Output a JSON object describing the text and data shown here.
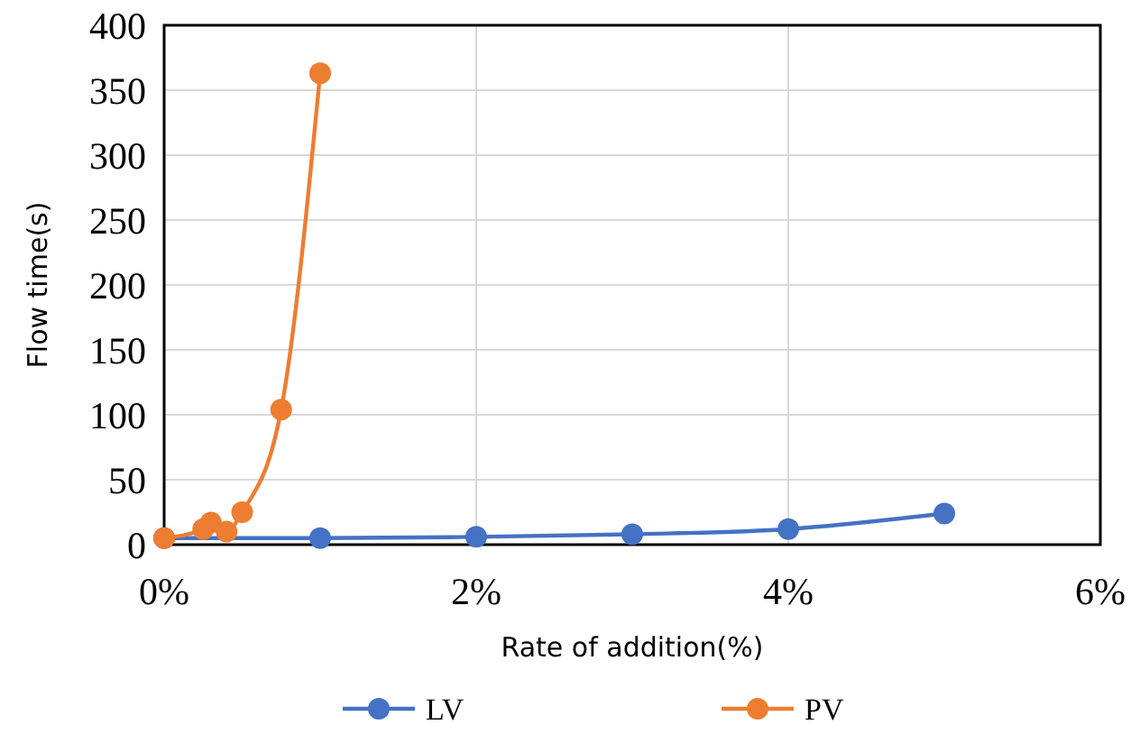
{
  "chart_data": {
    "type": "line",
    "xlabel": "Rate of addition(%)",
    "ylabel": "Flow time(s)",
    "xlim": [
      0,
      6
    ],
    "xticks": [
      {
        "value": 0,
        "label": "0%"
      },
      {
        "value": 2,
        "label": "2%"
      },
      {
        "value": 4,
        "label": "4%"
      },
      {
        "value": 6,
        "label": "6%"
      }
    ],
    "ylim": [
      0,
      400
    ],
    "yticks": [
      0,
      50,
      100,
      150,
      200,
      250,
      300,
      350,
      400
    ],
    "grid": true,
    "legend": "bottom",
    "marker": "circle",
    "line_style": "solid",
    "series": [
      {
        "name": "LV",
        "color": "#4472c4",
        "x": [
          0,
          1,
          2,
          3,
          4,
          5
        ],
        "values": [
          5,
          5,
          6,
          8,
          12,
          24
        ]
      },
      {
        "name": "PV",
        "color": "#ed7d31",
        "x": [
          0,
          0.25,
          0.3,
          0.4,
          0.5,
          0.75,
          1
        ],
        "values": [
          5,
          12,
          17,
          10,
          25,
          104,
          363
        ]
      }
    ]
  }
}
